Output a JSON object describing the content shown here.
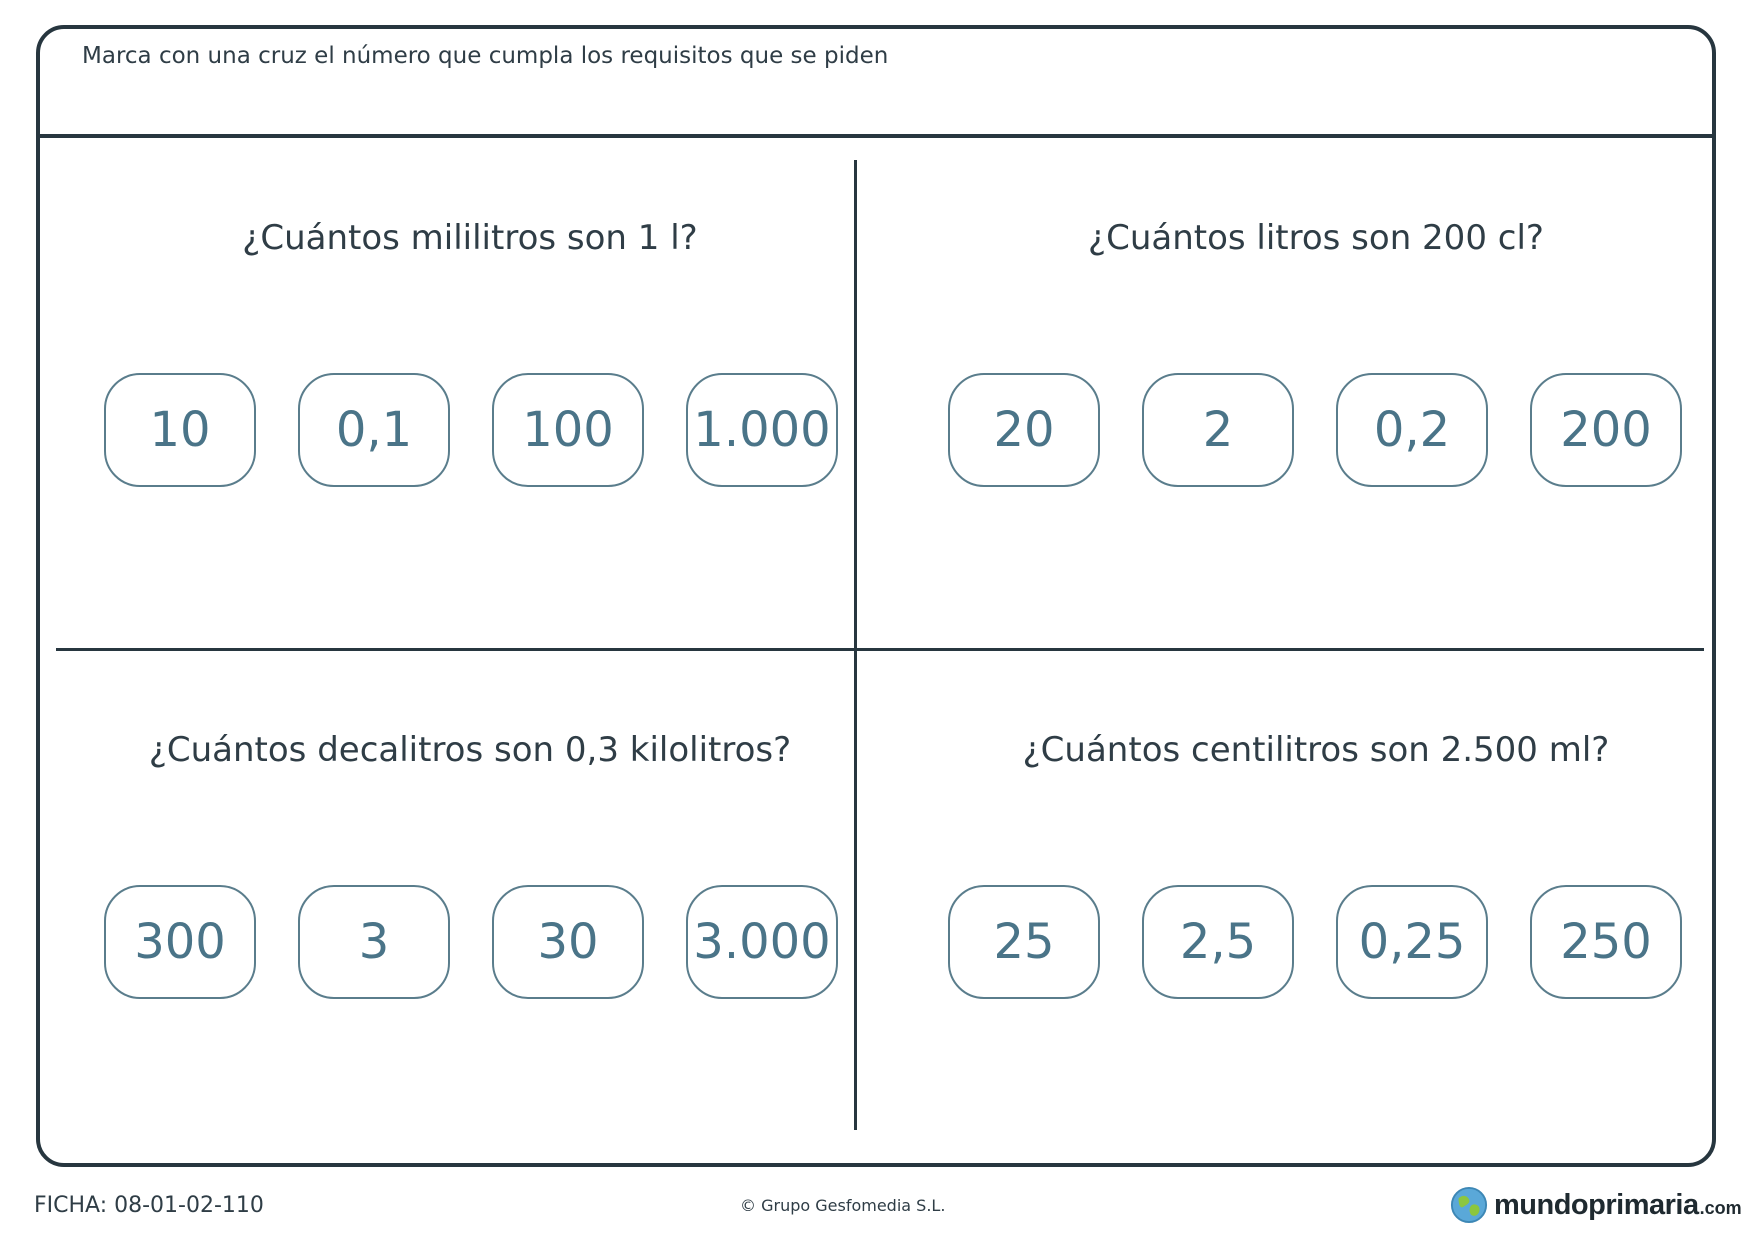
{
  "instructions": "Marca con una cruz el número que cumpla los requisitos que se piden",
  "questions": [
    {
      "text": "¿Cuántos mililitros son 1 l?",
      "options": [
        "10",
        "0,1",
        "100",
        "1.000"
      ]
    },
    {
      "text": "¿Cuántos litros son 200 cl?",
      "options": [
        "20",
        "2",
        "0,2",
        "200"
      ]
    },
    {
      "text": "¿Cuántos decalitros son 0,3 kilolitros?",
      "options": [
        "300",
        "3",
        "30",
        "3.000"
      ]
    },
    {
      "text": "¿Cuántos centilitros son 2.500 ml?",
      "options": [
        "25",
        "2,5",
        "0,25",
        "250"
      ]
    }
  ],
  "footer": {
    "code": "FICHA: 08-01-02-110",
    "copyright": "© Grupo Gesfomedia S.L.",
    "brand_name": "mundoprimaria",
    "brand_tld": ".com"
  },
  "colors": {
    "border": "#27363f",
    "text": "#2f3d46",
    "option_text": "#4a7488",
    "option_border": "#5a7d8c"
  },
  "icons": {
    "brand_logo": "globe-icon"
  }
}
